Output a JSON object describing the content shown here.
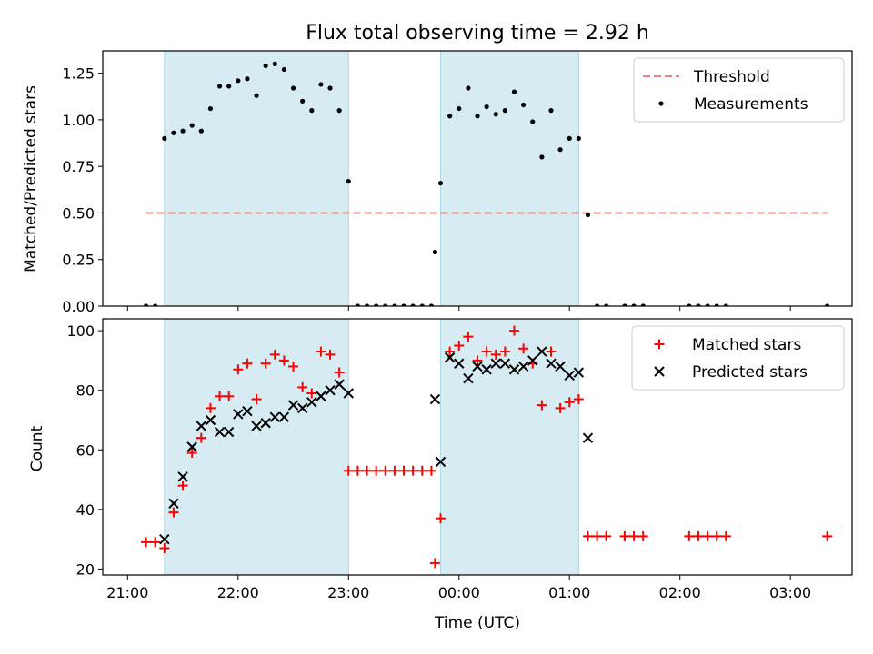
{
  "figure": {
    "title": "Flux total observing time = 2.92 h",
    "xlabel": "Time (UTC)",
    "x_ticks": [
      "21:00",
      "22:00",
      "23:00",
      "00:00",
      "01:00",
      "02:00",
      "03:00"
    ],
    "shade_color": "#add8e6",
    "shaded_intervals": [
      [
        "21:20",
        "23:00"
      ],
      [
        "23:50",
        "01:05"
      ]
    ]
  },
  "chart_data": [
    {
      "type": "scatter",
      "ylabel": "Matched/Predicted stars",
      "ylim": [
        0,
        1.37
      ],
      "yticks": [
        "0.00",
        "0.25",
        "0.50",
        "0.75",
        "1.00",
        "1.25"
      ],
      "legend_position": "top-right",
      "threshold": {
        "name": "Threshold",
        "value": 0.5,
        "x_range": [
          "21:10",
          "03:20"
        ],
        "color": "#f08080"
      },
      "series": [
        {
          "name": "Measurements",
          "color": "#000000",
          "marker": "dot",
          "points": [
            [
              "21:10",
              0
            ],
            [
              "21:15",
              0
            ],
            [
              "21:20",
              0.9
            ],
            [
              "21:25",
              0.93
            ],
            [
              "21:30",
              0.94
            ],
            [
              "21:35",
              0.97
            ],
            [
              "21:40",
              0.94
            ],
            [
              "21:45",
              1.06
            ],
            [
              "21:50",
              1.18
            ],
            [
              "21:55",
              1.18
            ],
            [
              "22:00",
              1.21
            ],
            [
              "22:05",
              1.22
            ],
            [
              "22:10",
              1.13
            ],
            [
              "22:15",
              1.29
            ],
            [
              "22:20",
              1.3
            ],
            [
              "22:25",
              1.27
            ],
            [
              "22:30",
              1.17
            ],
            [
              "22:35",
              1.1
            ],
            [
              "22:40",
              1.05
            ],
            [
              "22:45",
              1.19
            ],
            [
              "22:50",
              1.17
            ],
            [
              "22:55",
              1.05
            ],
            [
              "23:00",
              0.67
            ],
            [
              "23:05",
              0
            ],
            [
              "23:10",
              0
            ],
            [
              "23:15",
              0
            ],
            [
              "23:20",
              0
            ],
            [
              "23:25",
              0
            ],
            [
              "23:30",
              0
            ],
            [
              "23:35",
              0
            ],
            [
              "23:40",
              0
            ],
            [
              "23:45",
              0
            ],
            [
              "23:47",
              0.29
            ],
            [
              "23:50",
              0.66
            ],
            [
              "23:55",
              1.02
            ],
            [
              "00:00",
              1.06
            ],
            [
              "00:05",
              1.17
            ],
            [
              "00:10",
              1.02
            ],
            [
              "00:15",
              1.07
            ],
            [
              "00:20",
              1.03
            ],
            [
              "00:25",
              1.05
            ],
            [
              "00:30",
              1.15
            ],
            [
              "00:35",
              1.08
            ],
            [
              "00:40",
              0.99
            ],
            [
              "00:45",
              0.8
            ],
            [
              "00:50",
              1.05
            ],
            [
              "00:55",
              0.84
            ],
            [
              "01:00",
              0.9
            ],
            [
              "01:05",
              0.9
            ],
            [
              "01:10",
              0.49
            ],
            [
              "01:15",
              0
            ],
            [
              "01:20",
              0
            ],
            [
              "01:30",
              0
            ],
            [
              "01:35",
              0
            ],
            [
              "01:40",
              0
            ],
            [
              "02:05",
              0
            ],
            [
              "02:10",
              0
            ],
            [
              "02:15",
              0
            ],
            [
              "02:20",
              0
            ],
            [
              "02:25",
              0
            ],
            [
              "03:20",
              0
            ]
          ]
        }
      ]
    },
    {
      "type": "scatter",
      "ylabel": "Count",
      "ylim": [
        18,
        104
      ],
      "yticks": [
        "20",
        "40",
        "60",
        "80",
        "100"
      ],
      "legend_position": "top-right",
      "series": [
        {
          "name": "Matched stars",
          "color": "#ff0000",
          "marker": "plus",
          "points": [
            [
              "21:10",
              29
            ],
            [
              "21:15",
              29
            ],
            [
              "21:20",
              27
            ],
            [
              "21:25",
              39
            ],
            [
              "21:30",
              48
            ],
            [
              "21:35",
              59
            ],
            [
              "21:40",
              64
            ],
            [
              "21:45",
              74
            ],
            [
              "21:50",
              78
            ],
            [
              "21:55",
              78
            ],
            [
              "22:00",
              87
            ],
            [
              "22:05",
              89
            ],
            [
              "22:10",
              77
            ],
            [
              "22:15",
              89
            ],
            [
              "22:20",
              92
            ],
            [
              "22:25",
              90
            ],
            [
              "22:30",
              88
            ],
            [
              "22:35",
              81
            ],
            [
              "22:40",
              79
            ],
            [
              "22:45",
              93
            ],
            [
              "22:50",
              92
            ],
            [
              "22:55",
              86
            ],
            [
              "23:00",
              53
            ],
            [
              "23:05",
              53
            ],
            [
              "23:10",
              53
            ],
            [
              "23:15",
              53
            ],
            [
              "23:20",
              53
            ],
            [
              "23:25",
              53
            ],
            [
              "23:30",
              53
            ],
            [
              "23:35",
              53
            ],
            [
              "23:40",
              53
            ],
            [
              "23:45",
              53
            ],
            [
              "23:47",
              22
            ],
            [
              "23:50",
              37
            ],
            [
              "23:55",
              93
            ],
            [
              "00:00",
              95
            ],
            [
              "00:05",
              98
            ],
            [
              "00:10",
              90
            ],
            [
              "00:15",
              93
            ],
            [
              "00:20",
              92
            ],
            [
              "00:25",
              93
            ],
            [
              "00:30",
              100
            ],
            [
              "00:35",
              94
            ],
            [
              "00:40",
              89
            ],
            [
              "00:45",
              75
            ],
            [
              "00:50",
              93
            ],
            [
              "00:55",
              74
            ],
            [
              "01:00",
              76
            ],
            [
              "01:05",
              77
            ],
            [
              "01:10",
              31
            ],
            [
              "01:15",
              31
            ],
            [
              "01:20",
              31
            ],
            [
              "01:30",
              31
            ],
            [
              "01:35",
              31
            ],
            [
              "01:40",
              31
            ],
            [
              "02:05",
              31
            ],
            [
              "02:10",
              31
            ],
            [
              "02:15",
              31
            ],
            [
              "02:20",
              31
            ],
            [
              "02:25",
              31
            ],
            [
              "03:20",
              31
            ]
          ]
        },
        {
          "name": "Predicted stars",
          "color": "#000000",
          "marker": "x",
          "points": [
            [
              "21:20",
              30
            ],
            [
              "21:25",
              42
            ],
            [
              "21:30",
              51
            ],
            [
              "21:35",
              61
            ],
            [
              "21:40",
              68
            ],
            [
              "21:45",
              70
            ],
            [
              "21:50",
              66
            ],
            [
              "21:55",
              66
            ],
            [
              "22:00",
              72
            ],
            [
              "22:05",
              73
            ],
            [
              "22:10",
              68
            ],
            [
              "22:15",
              69
            ],
            [
              "22:20",
              71
            ],
            [
              "22:25",
              71
            ],
            [
              "22:30",
              75
            ],
            [
              "22:35",
              74
            ],
            [
              "22:40",
              76
            ],
            [
              "22:45",
              78
            ],
            [
              "22:50",
              80
            ],
            [
              "22:55",
              82
            ],
            [
              "23:00",
              79
            ],
            [
              "23:47",
              77
            ],
            [
              "23:50",
              56
            ],
            [
              "23:55",
              91
            ],
            [
              "00:00",
              89
            ],
            [
              "00:05",
              84
            ],
            [
              "00:10",
              88
            ],
            [
              "00:15",
              87
            ],
            [
              "00:20",
              89
            ],
            [
              "00:25",
              89
            ],
            [
              "00:30",
              87
            ],
            [
              "00:35",
              88
            ],
            [
              "00:40",
              90
            ],
            [
              "00:45",
              93
            ],
            [
              "00:50",
              89
            ],
            [
              "00:55",
              88
            ],
            [
              "01:00",
              85
            ],
            [
              "01:05",
              86
            ],
            [
              "01:10",
              64
            ]
          ]
        }
      ]
    }
  ]
}
